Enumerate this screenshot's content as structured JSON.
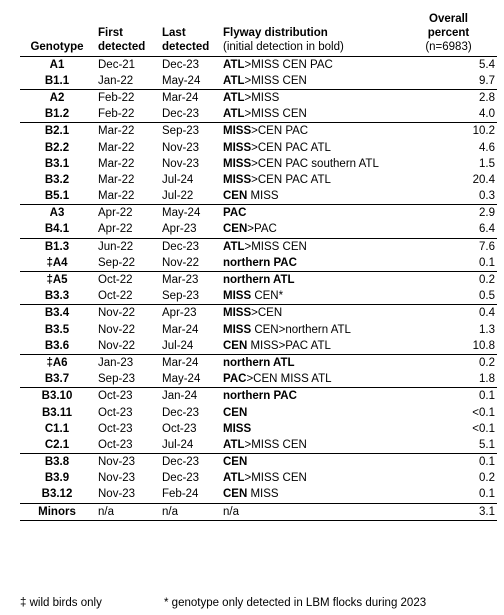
{
  "headers": {
    "genotype": "Genotype",
    "first_line1": "First",
    "first_line2": "detected",
    "last_line1": "Last",
    "last_line2": "detected",
    "flyway_line1": "Flyway distribution",
    "flyway_line2": "(initial detection in bold)",
    "pct_line1": "Overall",
    "pct_line2": "percent",
    "pct_line3": "(n=6983)"
  },
  "rows": [
    {
      "g": "A1",
      "f": "Dec-21",
      "l": "Dec-23",
      "b": "ATL",
      "r": ">MISS CEN PAC",
      "p": "5.4",
      "grp": true
    },
    {
      "g": "B1.1",
      "f": "Jan-22",
      "l": "May-24",
      "b": "ATL",
      "r": ">MISS CEN",
      "p": "9.7",
      "grp": false
    },
    {
      "g": "A2",
      "f": "Feb-22",
      "l": "Mar-24",
      "b": "ATL",
      "r": ">MISS",
      "p": "2.8",
      "grp": true
    },
    {
      "g": "B1.2",
      "f": "Feb-22",
      "l": "Dec-23",
      "b": "ATL",
      "r": ">MISS CEN",
      "p": "4.0",
      "grp": false
    },
    {
      "g": "B2.1",
      "f": "Mar-22",
      "l": "Sep-23",
      "b": "MISS",
      "r": ">CEN PAC",
      "p": "10.2",
      "grp": true
    },
    {
      "g": "B2.2",
      "f": "Mar-22",
      "l": "Nov-23",
      "b": "MISS",
      "r": ">CEN PAC ATL",
      "p": "4.6",
      "grp": false
    },
    {
      "g": "B3.1",
      "f": "Mar-22",
      "l": "Nov-23",
      "b": "MISS",
      "r": ">CEN PAC southern ATL",
      "p": "1.5",
      "grp": false
    },
    {
      "g": "B3.2",
      "f": "Mar-22",
      "l": "Jul-24",
      "b": "MISS",
      "r": ">CEN PAC ATL",
      "p": "20.4",
      "grp": false
    },
    {
      "g": "B5.1",
      "f": "Mar-22",
      "l": "Jul-22",
      "b": "CEN",
      "r": " MISS",
      "p": "0.3",
      "grp": false
    },
    {
      "g": "A3",
      "f": "Apr-22",
      "l": "May-24",
      "b": "PAC",
      "r": "",
      "p": "2.9",
      "grp": true
    },
    {
      "g": "B4.1",
      "f": "Apr-22",
      "l": "Apr-23",
      "b": "CEN",
      "r": ">PAC",
      "p": "6.4",
      "grp": false
    },
    {
      "g": "B1.3",
      "f": "Jun-22",
      "l": "Dec-23",
      "b": "ATL",
      "r": ">MISS CEN",
      "p": "7.6",
      "grp": true
    },
    {
      "g": "‡A4",
      "f": "Sep-22",
      "l": "Nov-22",
      "b": "northern PAC",
      "r": "",
      "p": "0.1",
      "grp": false
    },
    {
      "g": "‡A5",
      "f": "Oct-22",
      "l": "Mar-23",
      "b": "northern ATL",
      "r": "",
      "p": "0.2",
      "grp": true
    },
    {
      "g": "B3.3",
      "f": "Oct-22",
      "l": "Sep-23",
      "b": "MISS",
      "r": " CEN*",
      "p": "0.5",
      "grp": false
    },
    {
      "g": "B3.4",
      "f": "Nov-22",
      "l": "Apr-23",
      "b": "MISS",
      "r": ">CEN",
      "p": "0.4",
      "grp": true
    },
    {
      "g": "B3.5",
      "f": "Nov-22",
      "l": "Mar-24",
      "b": "MISS",
      "r": " CEN>northern ATL",
      "p": "1.3",
      "grp": false
    },
    {
      "g": "B3.6",
      "f": "Nov-22",
      "l": "Jul-24",
      "b": "CEN",
      "r": " MISS>PAC ATL",
      "p": "10.8",
      "grp": false
    },
    {
      "g": "‡A6",
      "f": "Jan-23",
      "l": "Mar-24",
      "b": "northern ATL",
      "r": "",
      "p": "0.2",
      "grp": true
    },
    {
      "g": "B3.7",
      "f": "Sep-23",
      "l": "May-24",
      "b": "PAC",
      "r": ">CEN MISS ATL",
      "p": "1.8",
      "grp": false
    },
    {
      "g": "B3.10",
      "f": "Oct-23",
      "l": "Jan-24",
      "b": "northern PAC",
      "r": "",
      "p": "0.1",
      "grp": true
    },
    {
      "g": "B3.11",
      "f": "Oct-23",
      "l": "Dec-23",
      "b": "CEN",
      "r": "",
      "p": "<0.1",
      "grp": false
    },
    {
      "g": "C1.1",
      "f": "Oct-23",
      "l": "Oct-23",
      "b": "MISS",
      "r": "",
      "p": "<0.1",
      "grp": false
    },
    {
      "g": "C2.1",
      "f": "Oct-23",
      "l": "Jul-24",
      "b": "ATL",
      "r": ">MISS CEN",
      "p": "5.1",
      "grp": false
    },
    {
      "g": "B3.8",
      "f": "Nov-23",
      "l": "Dec-23",
      "b": "CEN",
      "r": "",
      "p": "0.1",
      "grp": true
    },
    {
      "g": "B3.9",
      "f": "Nov-23",
      "l": "Dec-23",
      "b": "ATL",
      "r": ">MISS CEN",
      "p": "0.2",
      "grp": false
    },
    {
      "g": "B3.12",
      "f": "Nov-23",
      "l": "Feb-24",
      "b": "CEN",
      "r": " MISS",
      "p": "0.1",
      "grp": false
    },
    {
      "g": "Minors",
      "f": "n/a",
      "l": "n/a",
      "b": "",
      "r": "n/a",
      "p": "3.1",
      "grp": true
    }
  ],
  "footnotes": {
    "wild": "‡ wild birds only",
    "lbm": "* genotype only detected in LBM flocks during 2023"
  }
}
